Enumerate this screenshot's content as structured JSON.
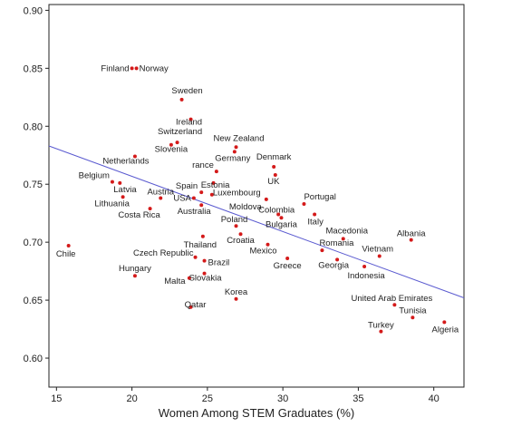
{
  "chart_data": {
    "type": "scatter",
    "title": "",
    "xlabel": "Women Among STEM Graduates (%)",
    "ylabel": "",
    "xlim": [
      14.5,
      42
    ],
    "ylim": [
      0.575,
      0.905
    ],
    "x_ticks": [
      15,
      20,
      25,
      30,
      35,
      40
    ],
    "x_tick_labels": [
      "15",
      "20",
      "25",
      "30",
      "35",
      "40"
    ],
    "y_ticks": [
      0.6,
      0.65,
      0.7,
      0.75,
      0.8,
      0.85,
      0.9
    ],
    "y_tick_labels": [
      "0.60",
      "0.65",
      "0.70",
      "0.75",
      "0.80",
      "0.85",
      "0.90"
    ],
    "grid": false,
    "point_color": "#d41a1a",
    "line_color": "#5a5ad0",
    "trend_line": {
      "x": [
        14.5,
        42
      ],
      "y": [
        0.783,
        0.652
      ]
    },
    "points": [
      {
        "name": "Finland",
        "x": 20.0,
        "y": 0.85
      },
      {
        "name": "Norway",
        "x": 20.3,
        "y": 0.85
      },
      {
        "name": "Sweden",
        "x": 23.3,
        "y": 0.823
      },
      {
        "name": "Ireland",
        "x": 23.9,
        "y": 0.806
      },
      {
        "name": "Switzerland",
        "x": 23.0,
        "y": 0.786
      },
      {
        "name": "Slovenia",
        "x": 22.6,
        "y": 0.784
      },
      {
        "name": "New Zealand",
        "x": 26.9,
        "y": 0.782
      },
      {
        "name": "Germany",
        "x": 26.8,
        "y": 0.778
      },
      {
        "name": "Denmark",
        "x": 29.4,
        "y": 0.765
      },
      {
        "name": "Netherlands",
        "x": 20.2,
        "y": 0.774
      },
      {
        "name": "rance",
        "x": 25.6,
        "y": 0.761
      },
      {
        "name": "Estonia",
        "x": 25.4,
        "y": 0.751
      },
      {
        "name": "UK",
        "x": 29.5,
        "y": 0.758
      },
      {
        "name": "Belgium",
        "x": 18.7,
        "y": 0.752
      },
      {
        "name": "Latvia",
        "x": 19.2,
        "y": 0.751
      },
      {
        "name": "Spain",
        "x": 24.6,
        "y": 0.743
      },
      {
        "name": "Luxembourg",
        "x": 25.3,
        "y": 0.741
      },
      {
        "name": "USA",
        "x": 24.1,
        "y": 0.738
      },
      {
        "name": "Austria",
        "x": 21.9,
        "y": 0.738
      },
      {
        "name": "Lithuania",
        "x": 19.4,
        "y": 0.739
      },
      {
        "name": "Portugal",
        "x": 31.4,
        "y": 0.733
      },
      {
        "name": "Moldova",
        "x": 28.9,
        "y": 0.737
      },
      {
        "name": "Costa Rica",
        "x": 21.2,
        "y": 0.729
      },
      {
        "name": "Australia",
        "x": 24.6,
        "y": 0.732
      },
      {
        "name": "Colombia",
        "x": 29.7,
        "y": 0.724
      },
      {
        "name": "Italy",
        "x": 32.1,
        "y": 0.724
      },
      {
        "name": "Poland",
        "x": 26.9,
        "y": 0.714
      },
      {
        "name": "Bulgaria",
        "x": 29.9,
        "y": 0.721
      },
      {
        "name": "Macedonia",
        "x": 34.0,
        "y": 0.703
      },
      {
        "name": "Albania",
        "x": 38.5,
        "y": 0.702
      },
      {
        "name": "Thailand",
        "x": 24.7,
        "y": 0.705
      },
      {
        "name": "Croatia",
        "x": 27.2,
        "y": 0.707
      },
      {
        "name": "Chile",
        "x": 15.8,
        "y": 0.697
      },
      {
        "name": "Romania",
        "x": 32.6,
        "y": 0.693
      },
      {
        "name": "Mexico",
        "x": 29.0,
        "y": 0.698
      },
      {
        "name": "Czech Republic",
        "x": 24.2,
        "y": 0.687
      },
      {
        "name": "Vietnam",
        "x": 36.4,
        "y": 0.688
      },
      {
        "name": "Greece",
        "x": 30.3,
        "y": 0.686
      },
      {
        "name": "Georgia",
        "x": 33.6,
        "y": 0.685
      },
      {
        "name": "Brazil",
        "x": 24.8,
        "y": 0.684
      },
      {
        "name": "Indonesia",
        "x": 35.4,
        "y": 0.679
      },
      {
        "name": "Hungary",
        "x": 20.2,
        "y": 0.671
      },
      {
        "name": "Slovakia",
        "x": 24.8,
        "y": 0.673
      },
      {
        "name": "Malta",
        "x": 23.8,
        "y": 0.669
      },
      {
        "name": "Korea",
        "x": 26.9,
        "y": 0.651
      },
      {
        "name": "United Arab Emirates",
        "x": 37.4,
        "y": 0.646
      },
      {
        "name": "Qatar",
        "x": 23.9,
        "y": 0.644
      },
      {
        "name": "Tunisia",
        "x": 38.6,
        "y": 0.635
      },
      {
        "name": "Algeria",
        "x": 40.7,
        "y": 0.631
      },
      {
        "name": "Turkey",
        "x": 36.5,
        "y": 0.623
      }
    ]
  }
}
